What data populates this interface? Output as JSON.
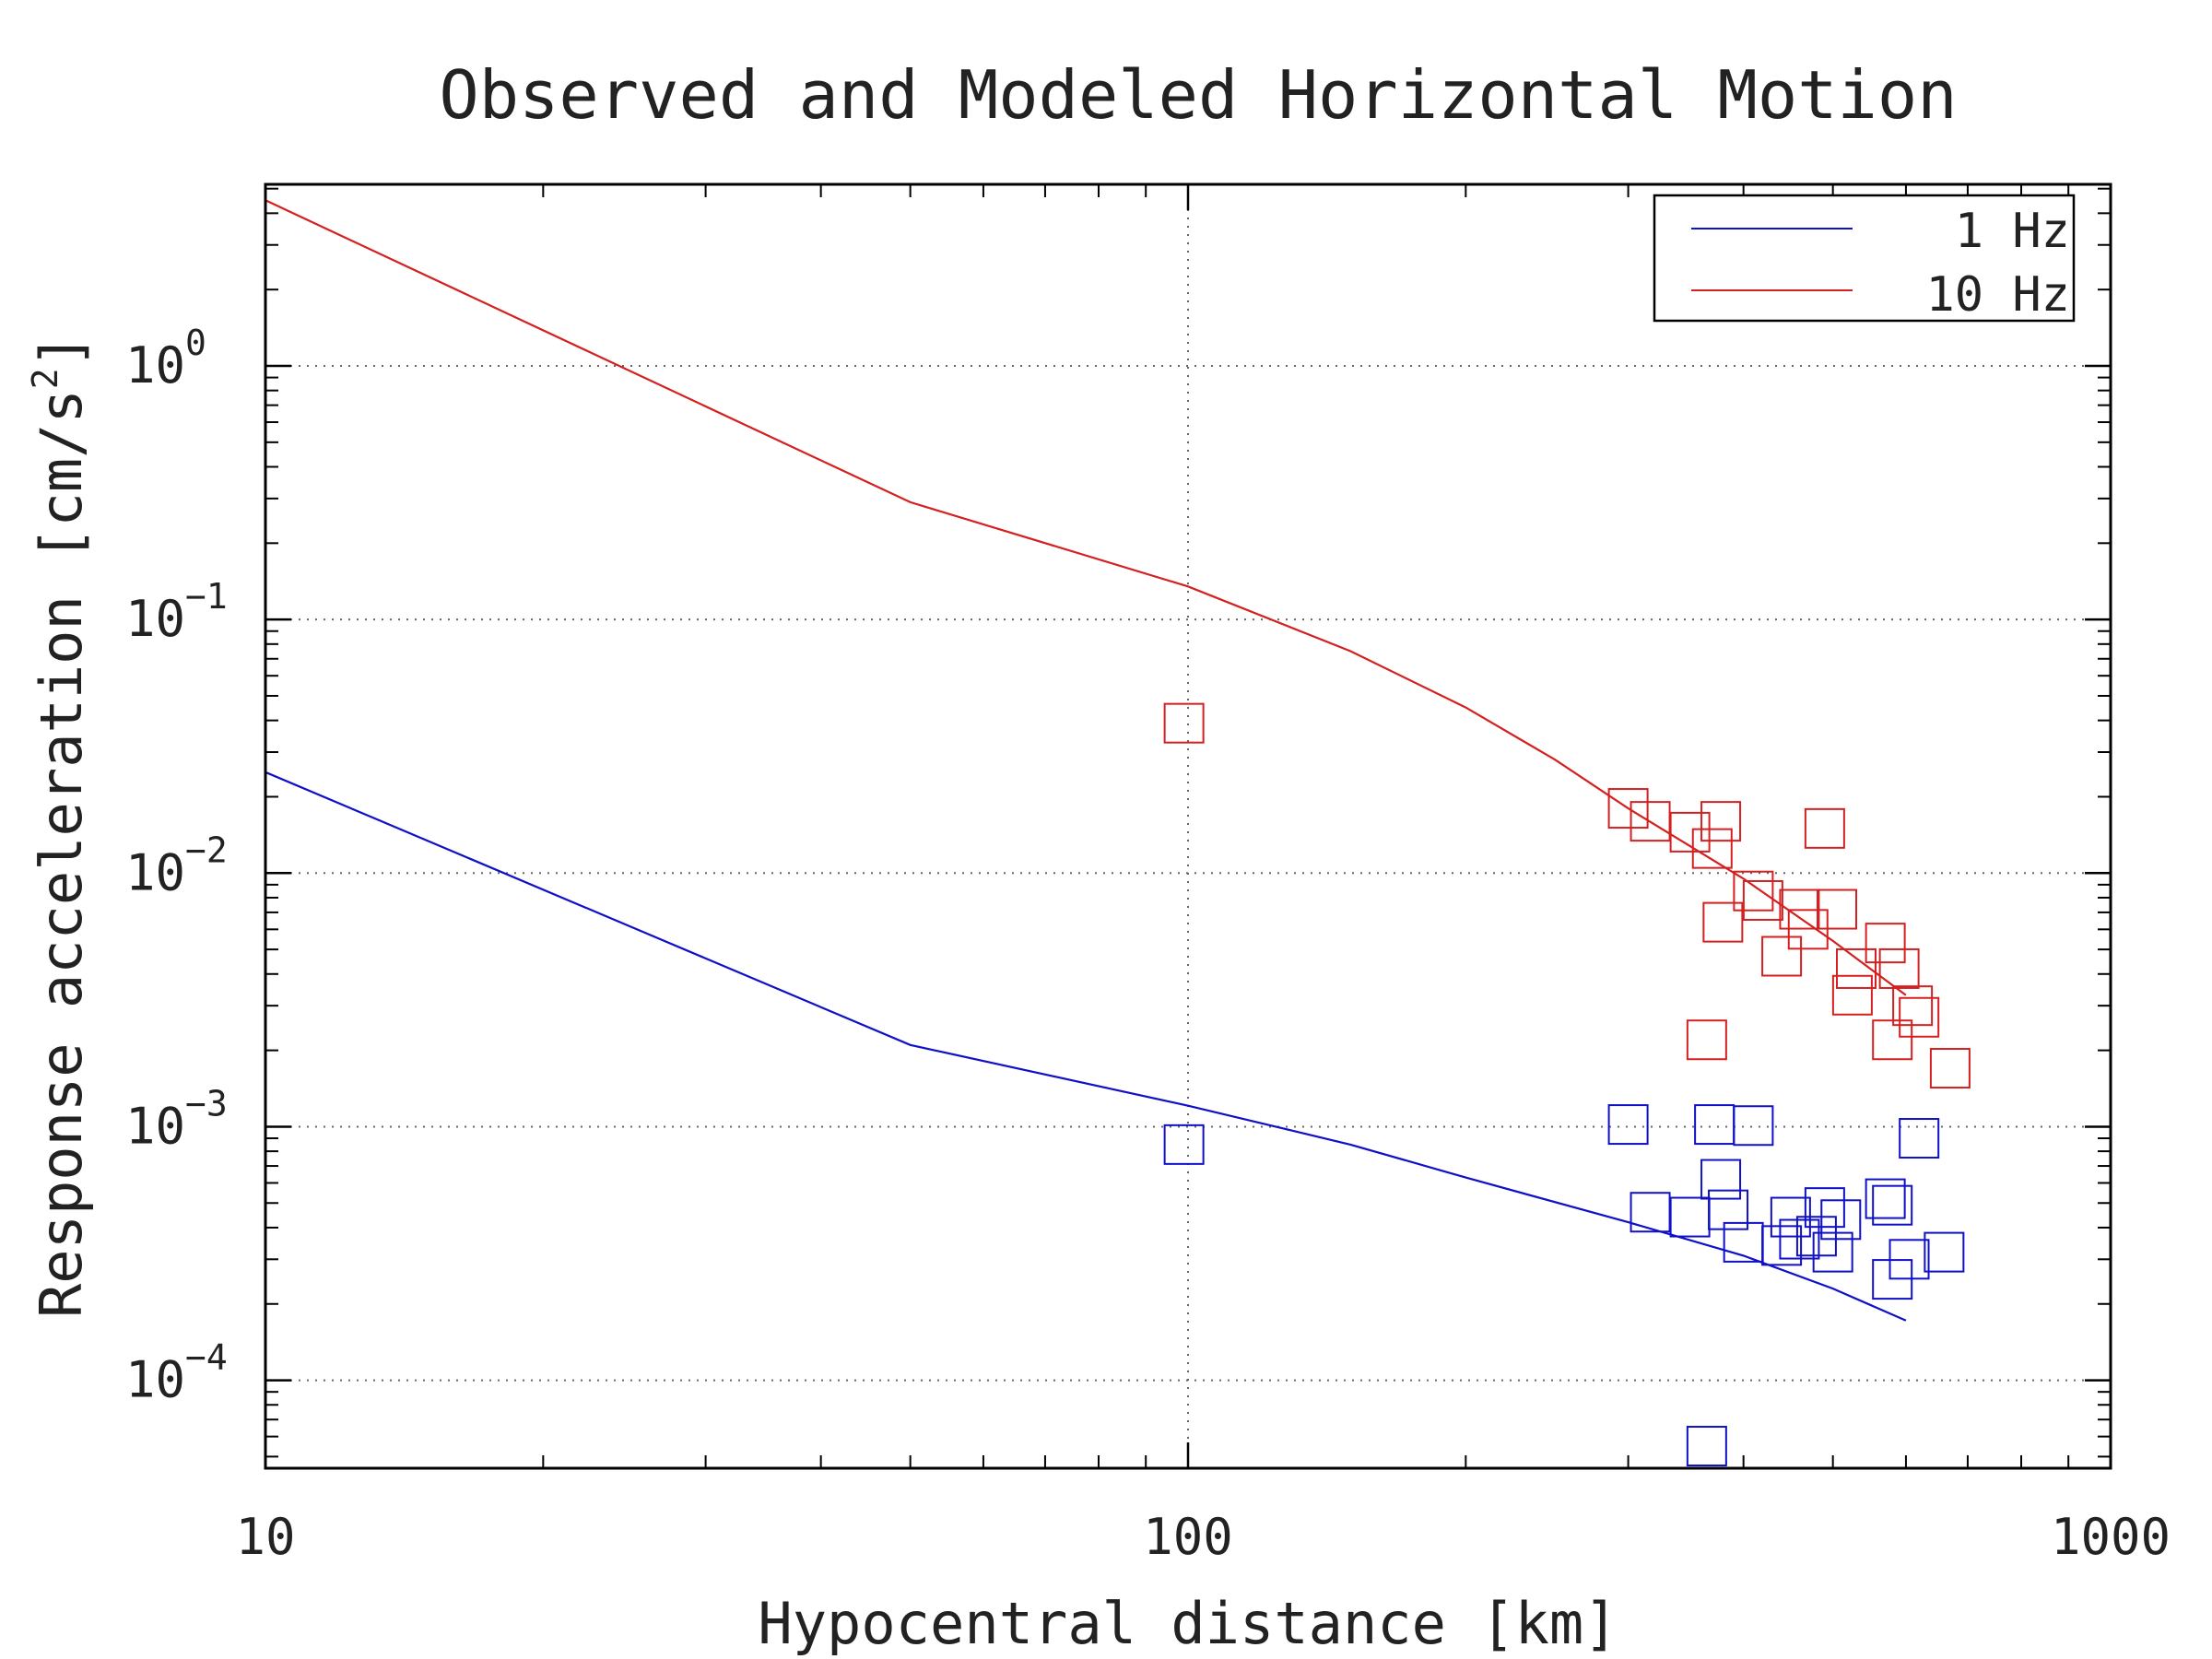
{
  "colors": {
    "series_1hz": "#1010c8",
    "series_10hz": "#d42020",
    "axes": "#000000",
    "grid": "#666666"
  },
  "chart_data": {
    "type": "scatter",
    "title": "Observed and Modeled Horizontal Motion",
    "xlabel": "Hypocentral distance [km]",
    "ylabel": "Response acceleration [cm/s²]",
    "ylabel_main": "Response acceleration [cm/s",
    "ylabel_exp": "2",
    "ylabel_close": "]",
    "xscale": "log",
    "yscale": "log",
    "xlim": [
      10,
      1000
    ],
    "ylim": [
      4.5e-05,
      5.2
    ],
    "grid": true,
    "legend_position": "top-right",
    "x_ticks": [
      {
        "value": 10,
        "label": "10"
      },
      {
        "value": 100,
        "label": "100"
      },
      {
        "value": 1000,
        "label": "1000"
      }
    ],
    "y_ticks": [
      {
        "value": 0.0001,
        "base": "10",
        "exp": "−4"
      },
      {
        "value": 0.001,
        "base": "10",
        "exp": "−3"
      },
      {
        "value": 0.01,
        "base": "10",
        "exp": "−2"
      },
      {
        "value": 0.1,
        "base": "10",
        "exp": "−1"
      },
      {
        "value": 1,
        "base": "10",
        "exp": "0"
      }
    ],
    "series": [
      {
        "name": "1 Hz",
        "color_key": "series_1hz",
        "model_line": [
          {
            "x": 10,
            "y": 0.025
          },
          {
            "x": 50,
            "y": 0.0021
          },
          {
            "x": 100,
            "y": 0.00121
          },
          {
            "x": 150,
            "y": 0.00085
          },
          {
            "x": 200,
            "y": 0.00063
          },
          {
            "x": 300,
            "y": 0.00042
          },
          {
            "x": 400,
            "y": 0.00031
          },
          {
            "x": 500,
            "y": 0.00023
          },
          {
            "x": 600,
            "y": 0.000172
          }
        ],
        "observed": [
          {
            "x": 99,
            "y": 0.00085
          },
          {
            "x": 300,
            "y": 0.00102
          },
          {
            "x": 317,
            "y": 0.00046
          },
          {
            "x": 350,
            "y": 0.00044
          },
          {
            "x": 372,
            "y": 0.00102
          },
          {
            "x": 385,
            "y": 0.00047
          },
          {
            "x": 378,
            "y": 0.00062
          },
          {
            "x": 410,
            "y": 0.00101
          },
          {
            "x": 400,
            "y": 0.00035
          },
          {
            "x": 440,
            "y": 0.00034
          },
          {
            "x": 450,
            "y": 0.00044
          },
          {
            "x": 460,
            "y": 0.00036
          },
          {
            "x": 490,
            "y": 0.00048
          },
          {
            "x": 480,
            "y": 0.00037
          },
          {
            "x": 510,
            "y": 0.00043
          },
          {
            "x": 500,
            "y": 0.00032
          },
          {
            "x": 570,
            "y": 0.00052
          },
          {
            "x": 580,
            "y": 0.00049
          },
          {
            "x": 580,
            "y": 0.00025
          },
          {
            "x": 605,
            "y": 0.0003
          },
          {
            "x": 620,
            "y": 0.0009
          },
          {
            "x": 660,
            "y": 0.00032
          },
          {
            "x": 365,
            "y": 5.5e-05
          }
        ]
      },
      {
        "name": "10 Hz",
        "color_key": "series_10hz",
        "model_line": [
          {
            "x": 10,
            "y": 4.5
          },
          {
            "x": 50,
            "y": 0.29
          },
          {
            "x": 100,
            "y": 0.135
          },
          {
            "x": 150,
            "y": 0.075
          },
          {
            "x": 200,
            "y": 0.045
          },
          {
            "x": 250,
            "y": 0.028
          },
          {
            "x": 300,
            "y": 0.018
          },
          {
            "x": 400,
            "y": 0.0095
          },
          {
            "x": 500,
            "y": 0.0054
          },
          {
            "x": 600,
            "y": 0.0033
          }
        ],
        "observed": [
          {
            "x": 99,
            "y": 0.039
          },
          {
            "x": 300,
            "y": 0.018
          },
          {
            "x": 317,
            "y": 0.016
          },
          {
            "x": 350,
            "y": 0.0145
          },
          {
            "x": 378,
            "y": 0.016
          },
          {
            "x": 370,
            "y": 0.0125
          },
          {
            "x": 380,
            "y": 0.0064
          },
          {
            "x": 410,
            "y": 0.0085
          },
          {
            "x": 420,
            "y": 0.0078
          },
          {
            "x": 440,
            "y": 0.0047
          },
          {
            "x": 460,
            "y": 0.0072
          },
          {
            "x": 470,
            "y": 0.006
          },
          {
            "x": 490,
            "y": 0.015
          },
          {
            "x": 505,
            "y": 0.0072
          },
          {
            "x": 530,
            "y": 0.0042
          },
          {
            "x": 525,
            "y": 0.0033
          },
          {
            "x": 570,
            "y": 0.0053
          },
          {
            "x": 590,
            "y": 0.0042
          },
          {
            "x": 580,
            "y": 0.0022
          },
          {
            "x": 610,
            "y": 0.003
          },
          {
            "x": 620,
            "y": 0.0027
          },
          {
            "x": 365,
            "y": 0.0022
          },
          {
            "x": 670,
            "y": 0.0017
          }
        ]
      }
    ]
  }
}
